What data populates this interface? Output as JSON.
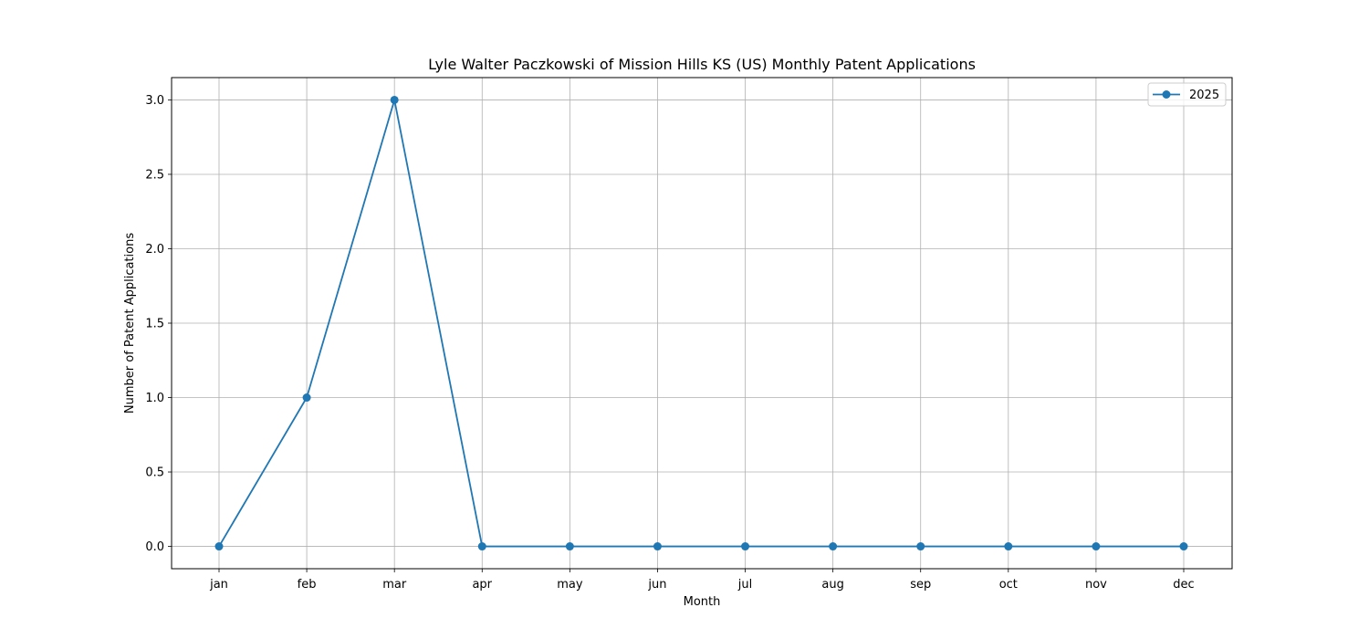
{
  "chart_data": {
    "type": "line",
    "title": "Lyle Walter Paczkowski of Mission Hills KS (US) Monthly Patent Applications",
    "xlabel": "Month",
    "ylabel": "Number of Patent Applications",
    "categories": [
      "jan",
      "feb",
      "mar",
      "apr",
      "may",
      "jun",
      "jul",
      "aug",
      "sep",
      "oct",
      "nov",
      "dec"
    ],
    "series": [
      {
        "name": "2025",
        "values": [
          0,
          1,
          3,
          0,
          0,
          0,
          0,
          0,
          0,
          0,
          0,
          0
        ],
        "color": "#1f77b4",
        "marker": "circle"
      }
    ],
    "ylim": [
      -0.15,
      3.15
    ],
    "yticks": [
      0.0,
      0.5,
      1.0,
      1.5,
      2.0,
      2.5,
      3.0
    ],
    "ytick_labels": [
      "0.0",
      "0.5",
      "1.0",
      "1.5",
      "2.0",
      "2.5",
      "3.0"
    ],
    "grid": true,
    "legend_position": "top-right"
  }
}
